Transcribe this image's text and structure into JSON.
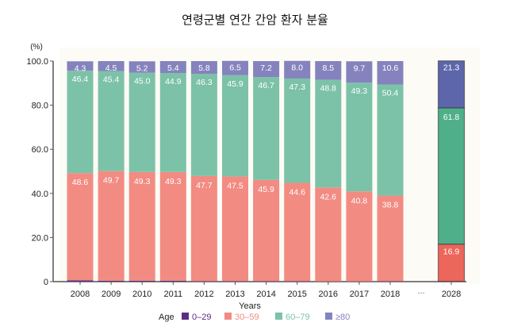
{
  "chart_data": {
    "type": "bar",
    "stacked": true,
    "title": "연령군별 연간 간암 환자 분율",
    "ylabel": "(%)",
    "xlabel": "Years",
    "ylim": [
      0,
      100
    ],
    "yticks": [
      "0",
      "20.0",
      "40.0",
      "60.0",
      "80.0",
      "100.0"
    ],
    "categories": [
      "2008",
      "2009",
      "2010",
      "2011",
      "2012",
      "2013",
      "2014",
      "2015",
      "2016",
      "2017",
      "2018",
      "2028"
    ],
    "gap_label": "---",
    "legend_title": "Age",
    "legend_position": "bottom",
    "series": [
      {
        "name": "0–29",
        "color": "#5b2e83",
        "values": [
          0.6,
          0.4,
          0.4,
          0.4,
          0.2,
          0.2,
          0.2,
          0.2,
          0.1,
          0.1,
          0.2,
          0.1
        ]
      },
      {
        "name": "30–59",
        "color": "#f28b82",
        "values": [
          48.6,
          49.7,
          49.3,
          49.3,
          47.7,
          47.5,
          45.9,
          44.6,
          42.6,
          40.8,
          38.8,
          16.9
        ]
      },
      {
        "name": "60–79",
        "color": "#7cc2a8",
        "values": [
          46.4,
          45.4,
          45.0,
          44.9,
          46.3,
          45.9,
          46.7,
          47.3,
          48.8,
          49.3,
          50.4,
          61.8
        ]
      },
      {
        "name": "≥80",
        "color": "#8583bd",
        "values": [
          4.3,
          4.5,
          5.2,
          5.4,
          5.8,
          6.5,
          7.2,
          8.0,
          8.5,
          9.7,
          10.6,
          21.3
        ]
      }
    ],
    "projection_colors": [
      "#5b2e83",
      "#ec665c",
      "#4faf8a",
      "#5d66aa"
    ]
  }
}
